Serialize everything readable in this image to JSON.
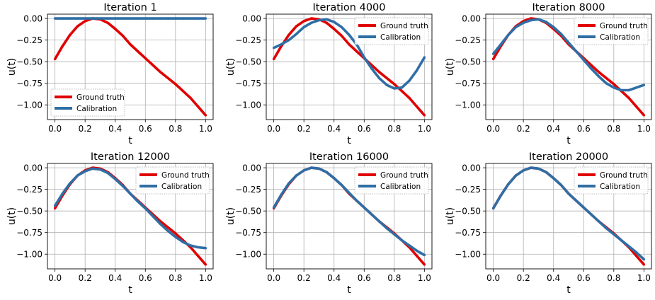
{
  "chart_data": [
    {
      "type": "line",
      "title": "Iteration 1",
      "xlabel": "t",
      "ylabel": "u(t)",
      "xlim": [
        -0.05,
        1.05
      ],
      "ylim": [
        -1.17,
        0.05
      ],
      "xticks": [
        0.0,
        0.2,
        0.4,
        0.6,
        0.8,
        1.0
      ],
      "xtick_labels": [
        "0.0",
        "0.2",
        "0.4",
        "0.6",
        "0.8",
        "1.0"
      ],
      "yticks": [
        0.0,
        -0.25,
        -0.5,
        -0.75,
        -1.0
      ],
      "ytick_labels": [
        "0.00",
        "−0.25",
        "−0.50",
        "−0.75",
        "−1.00"
      ],
      "grid": true,
      "legend": "lower-left",
      "x": [
        0.0,
        0.05,
        0.1,
        0.15,
        0.2,
        0.25,
        0.3,
        0.35,
        0.4,
        0.45,
        0.5,
        0.55,
        0.6,
        0.65,
        0.7,
        0.75,
        0.8,
        0.85,
        0.9,
        0.95,
        1.0
      ],
      "series": [
        {
          "name": "Ground truth",
          "color": "#e00000",
          "values": [
            -0.47,
            -0.32,
            -0.19,
            -0.09,
            -0.03,
            0.0,
            -0.01,
            -0.05,
            -0.12,
            -0.2,
            -0.3,
            -0.38,
            -0.46,
            -0.54,
            -0.62,
            -0.69,
            -0.76,
            -0.84,
            -0.92,
            -1.02,
            -1.12
          ]
        },
        {
          "name": "Calibration",
          "color": "#2f6ea5",
          "values": [
            0.0,
            0.0,
            0.0,
            0.0,
            0.0,
            0.0,
            0.0,
            0.0,
            0.0,
            0.0,
            0.0,
            0.0,
            0.0,
            0.0,
            0.0,
            0.0,
            0.0,
            0.0,
            0.0,
            0.0,
            0.0
          ]
        }
      ]
    },
    {
      "type": "line",
      "title": "Iteration 4000",
      "xlabel": "t",
      "ylabel": "u(t)",
      "xlim": [
        -0.05,
        1.05
      ],
      "ylim": [
        -1.17,
        0.05
      ],
      "xticks": [
        0.0,
        0.2,
        0.4,
        0.6,
        0.8,
        1.0
      ],
      "xtick_labels": [
        "0.0",
        "0.2",
        "0.4",
        "0.6",
        "0.8",
        "1.0"
      ],
      "yticks": [
        0.0,
        -0.25,
        -0.5,
        -0.75,
        -1.0
      ],
      "ytick_labels": [
        "0.00",
        "−0.25",
        "−0.50",
        "−0.75",
        "−1.00"
      ],
      "grid": true,
      "legend": "upper-right",
      "x": [
        0.0,
        0.05,
        0.1,
        0.15,
        0.2,
        0.25,
        0.3,
        0.35,
        0.4,
        0.45,
        0.5,
        0.55,
        0.6,
        0.65,
        0.7,
        0.75,
        0.8,
        0.85,
        0.9,
        0.95,
        1.0
      ],
      "series": [
        {
          "name": "Ground truth",
          "color": "#e00000",
          "values": [
            -0.47,
            -0.32,
            -0.19,
            -0.09,
            -0.03,
            0.0,
            -0.01,
            -0.05,
            -0.12,
            -0.2,
            -0.3,
            -0.38,
            -0.46,
            -0.54,
            -0.62,
            -0.69,
            -0.76,
            -0.84,
            -0.92,
            -1.02,
            -1.12
          ]
        },
        {
          "name": "Calibration",
          "color": "#2f6ea5",
          "values": [
            -0.34,
            -0.3,
            -0.25,
            -0.18,
            -0.1,
            -0.05,
            -0.02,
            -0.01,
            -0.04,
            -0.1,
            -0.19,
            -0.3,
            -0.45,
            -0.58,
            -0.69,
            -0.77,
            -0.81,
            -0.8,
            -0.72,
            -0.6,
            -0.45
          ]
        }
      ]
    },
    {
      "type": "line",
      "title": "Iteration 8000",
      "xlabel": "t",
      "ylabel": "u(t)",
      "xlim": [
        -0.05,
        1.05
      ],
      "ylim": [
        -1.17,
        0.05
      ],
      "xticks": [
        0.0,
        0.2,
        0.4,
        0.6,
        0.8,
        1.0
      ],
      "xtick_labels": [
        "0.0",
        "0.2",
        "0.4",
        "0.6",
        "0.8",
        "1.0"
      ],
      "yticks": [
        0.0,
        -0.25,
        -0.5,
        -0.75,
        -1.0
      ],
      "ytick_labels": [
        "0.00",
        "−0.25",
        "−0.50",
        "−0.75",
        "−1.00"
      ],
      "grid": true,
      "legend": "upper-right",
      "x": [
        0.0,
        0.05,
        0.1,
        0.15,
        0.2,
        0.25,
        0.3,
        0.35,
        0.4,
        0.45,
        0.5,
        0.55,
        0.6,
        0.65,
        0.7,
        0.75,
        0.8,
        0.85,
        0.9,
        0.95,
        1.0
      ],
      "series": [
        {
          "name": "Ground truth",
          "color": "#e00000",
          "values": [
            -0.47,
            -0.32,
            -0.19,
            -0.09,
            -0.03,
            0.0,
            -0.01,
            -0.05,
            -0.12,
            -0.2,
            -0.3,
            -0.38,
            -0.46,
            -0.54,
            -0.62,
            -0.69,
            -0.76,
            -0.84,
            -0.92,
            -1.02,
            -1.12
          ]
        },
        {
          "name": "Calibration",
          "color": "#2f6ea5",
          "values": [
            -0.41,
            -0.3,
            -0.19,
            -0.1,
            -0.05,
            -0.02,
            -0.01,
            -0.04,
            -0.1,
            -0.18,
            -0.28,
            -0.38,
            -0.48,
            -0.58,
            -0.67,
            -0.75,
            -0.8,
            -0.83,
            -0.83,
            -0.8,
            -0.77
          ]
        }
      ]
    },
    {
      "type": "line",
      "title": "Iteration 12000",
      "xlabel": "t",
      "ylabel": "u(t)",
      "xlim": [
        -0.05,
        1.05
      ],
      "ylim": [
        -1.17,
        0.05
      ],
      "xticks": [
        0.0,
        0.2,
        0.4,
        0.6,
        0.8,
        1.0
      ],
      "xtick_labels": [
        "0.0",
        "0.2",
        "0.4",
        "0.6",
        "0.8",
        "1.0"
      ],
      "yticks": [
        0.0,
        -0.25,
        -0.5,
        -0.75,
        -1.0
      ],
      "ytick_labels": [
        "0.00",
        "−0.25",
        "−0.50",
        "−0.75",
        "−1.00"
      ],
      "grid": true,
      "legend": "upper-right",
      "x": [
        0.0,
        0.05,
        0.1,
        0.15,
        0.2,
        0.25,
        0.3,
        0.35,
        0.4,
        0.45,
        0.5,
        0.55,
        0.6,
        0.65,
        0.7,
        0.75,
        0.8,
        0.85,
        0.9,
        0.95,
        1.0
      ],
      "series": [
        {
          "name": "Ground truth",
          "color": "#e00000",
          "values": [
            -0.47,
            -0.32,
            -0.19,
            -0.09,
            -0.03,
            0.0,
            -0.01,
            -0.05,
            -0.12,
            -0.2,
            -0.3,
            -0.38,
            -0.46,
            -0.54,
            -0.62,
            -0.69,
            -0.76,
            -0.84,
            -0.92,
            -1.02,
            -1.12
          ]
        },
        {
          "name": "Calibration",
          "color": "#2f6ea5",
          "values": [
            -0.44,
            -0.3,
            -0.18,
            -0.09,
            -0.04,
            -0.01,
            -0.02,
            -0.06,
            -0.13,
            -0.21,
            -0.3,
            -0.39,
            -0.47,
            -0.56,
            -0.65,
            -0.73,
            -0.8,
            -0.86,
            -0.9,
            -0.92,
            -0.93
          ]
        }
      ]
    },
    {
      "type": "line",
      "title": "Iteration 16000",
      "xlabel": "t",
      "ylabel": "u(t)",
      "xlim": [
        -0.05,
        1.05
      ],
      "ylim": [
        -1.17,
        0.05
      ],
      "xticks": [
        0.0,
        0.2,
        0.4,
        0.6,
        0.8,
        1.0
      ],
      "xtick_labels": [
        "0.0",
        "0.2",
        "0.4",
        "0.6",
        "0.8",
        "1.0"
      ],
      "yticks": [
        0.0,
        -0.25,
        -0.5,
        -0.75,
        -1.0
      ],
      "ytick_labels": [
        "0.00",
        "−0.25",
        "−0.50",
        "−0.75",
        "−1.00"
      ],
      "grid": true,
      "legend": "upper-right",
      "x": [
        0.0,
        0.05,
        0.1,
        0.15,
        0.2,
        0.25,
        0.3,
        0.35,
        0.4,
        0.45,
        0.5,
        0.55,
        0.6,
        0.65,
        0.7,
        0.75,
        0.8,
        0.85,
        0.9,
        0.95,
        1.0
      ],
      "series": [
        {
          "name": "Ground truth",
          "color": "#e00000",
          "values": [
            -0.47,
            -0.32,
            -0.19,
            -0.09,
            -0.03,
            0.0,
            -0.01,
            -0.05,
            -0.12,
            -0.2,
            -0.3,
            -0.38,
            -0.46,
            -0.54,
            -0.62,
            -0.69,
            -0.76,
            -0.84,
            -0.92,
            -1.02,
            -1.12
          ]
        },
        {
          "name": "Calibration",
          "color": "#2f6ea5",
          "values": [
            -0.46,
            -0.31,
            -0.18,
            -0.09,
            -0.03,
            0.0,
            -0.01,
            -0.05,
            -0.12,
            -0.2,
            -0.29,
            -0.38,
            -0.46,
            -0.54,
            -0.62,
            -0.7,
            -0.77,
            -0.84,
            -0.9,
            -0.96,
            -1.01
          ]
        }
      ]
    },
    {
      "type": "line",
      "title": "Iteration 20000",
      "xlabel": "t",
      "ylabel": "u(t)",
      "xlim": [
        -0.05,
        1.05
      ],
      "ylim": [
        -1.17,
        0.05
      ],
      "xticks": [
        0.0,
        0.2,
        0.4,
        0.6,
        0.8,
        1.0
      ],
      "xtick_labels": [
        "0.0",
        "0.2",
        "0.4",
        "0.6",
        "0.8",
        "1.0"
      ],
      "yticks": [
        0.0,
        -0.25,
        -0.5,
        -0.75,
        -1.0
      ],
      "ytick_labels": [
        "0.00",
        "−0.25",
        "−0.50",
        "−0.75",
        "−1.00"
      ],
      "grid": true,
      "legend": "upper-right",
      "x": [
        0.0,
        0.05,
        0.1,
        0.15,
        0.2,
        0.25,
        0.3,
        0.35,
        0.4,
        0.45,
        0.5,
        0.55,
        0.6,
        0.65,
        0.7,
        0.75,
        0.8,
        0.85,
        0.9,
        0.95,
        1.0
      ],
      "series": [
        {
          "name": "Ground truth",
          "color": "#e00000",
          "values": [
            -0.47,
            -0.32,
            -0.19,
            -0.09,
            -0.03,
            0.0,
            -0.01,
            -0.05,
            -0.12,
            -0.2,
            -0.3,
            -0.38,
            -0.46,
            -0.54,
            -0.62,
            -0.69,
            -0.76,
            -0.84,
            -0.92,
            -1.02,
            -1.12
          ]
        },
        {
          "name": "Calibration",
          "color": "#2f6ea5",
          "values": [
            -0.47,
            -0.32,
            -0.19,
            -0.09,
            -0.03,
            0.0,
            -0.01,
            -0.05,
            -0.12,
            -0.2,
            -0.3,
            -0.38,
            -0.46,
            -0.54,
            -0.62,
            -0.7,
            -0.77,
            -0.84,
            -0.91,
            -0.98,
            -1.06
          ]
        }
      ]
    }
  ]
}
